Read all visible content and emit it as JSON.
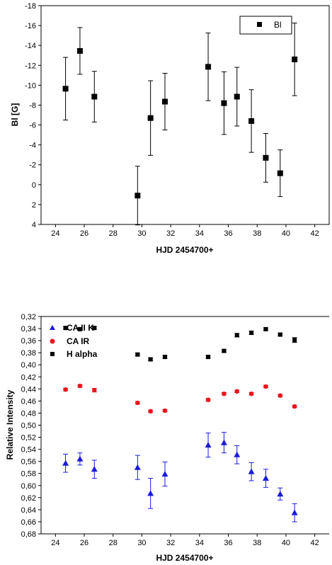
{
  "chart_data": [
    {
      "type": "scatter",
      "title": "",
      "xlabel": "HJD 2454700+",
      "ylabel": "Bl [G]",
      "xlim": [
        23,
        43
      ],
      "ylim": [
        -18,
        4
      ],
      "y_inverted": true,
      "x_ticks": [
        24,
        26,
        28,
        30,
        32,
        34,
        36,
        38,
        40,
        42
      ],
      "y_ticks": [
        -18,
        -16,
        -14,
        -12,
        -10,
        -8,
        -6,
        -4,
        -2,
        0,
        2,
        4
      ],
      "legend_position": "top-right",
      "series": [
        {
          "name": "Bl",
          "color": "#000000",
          "marker": "square",
          "x": [
            24.7,
            25.7,
            26.7,
            29.7,
            30.6,
            31.6,
            34.6,
            35.7,
            36.6,
            37.6,
            38.6,
            39.6,
            40.6
          ],
          "y": [
            -9.65,
            -13.45,
            -8.85,
            1.1,
            -6.7,
            -8.35,
            -11.85,
            -8.2,
            -8.85,
            -6.4,
            -2.7,
            -1.15,
            -12.6
          ],
          "err": [
            3.15,
            2.35,
            2.55,
            2.95,
            3.75,
            2.85,
            3.4,
            3.15,
            2.95,
            3.15,
            2.45,
            2.35,
            3.65
          ]
        }
      ]
    },
    {
      "type": "scatter",
      "title": "",
      "xlabel": "HJD 2454700+",
      "ylabel": "Relative Intensity",
      "xlim": [
        23,
        43
      ],
      "ylim": [
        0.32,
        0.68
      ],
      "x_ticks": [
        24,
        26,
        28,
        30,
        32,
        34,
        36,
        38,
        40,
        42
      ],
      "y_ticks": [
        0.32,
        0.34,
        0.36,
        0.38,
        0.4,
        0.42,
        0.44,
        0.46,
        0.48,
        0.5,
        0.52,
        0.54,
        0.56,
        0.58,
        0.6,
        0.62,
        0.64,
        0.66,
        0.68
      ],
      "y_tick_labels": [
        "0,32",
        "0,34",
        "0,36",
        "0,38",
        "0,40",
        "0,42",
        "0,44",
        "0,46",
        "0,48",
        "0,50",
        "0,52",
        "0,54",
        "0,56",
        "0,58",
        "0,60",
        "0,62",
        "0,64",
        "0,66",
        "0,68"
      ],
      "legend_position": "top-left",
      "series": [
        {
          "name": "CA II K",
          "color": "#1a1adb",
          "marker": "triangle",
          "x": [
            24.7,
            25.7,
            26.7,
            29.7,
            30.6,
            31.6,
            34.6,
            35.7,
            36.6,
            37.6,
            38.6,
            39.6,
            40.6
          ],
          "y": [
            0.563,
            0.556,
            0.573,
            0.57,
            0.613,
            0.581,
            0.533,
            0.529,
            0.549,
            0.577,
            0.588,
            0.614,
            0.645
          ],
          "err": [
            0.015,
            0.01,
            0.015,
            0.02,
            0.025,
            0.02,
            0.02,
            0.017,
            0.015,
            0.015,
            0.015,
            0.01,
            0.015
          ]
        },
        {
          "name": "CA IR",
          "color": "#e8141d",
          "marker": "circle",
          "x": [
            24.7,
            25.7,
            26.7,
            29.7,
            30.6,
            31.6,
            34.6,
            35.7,
            36.6,
            37.6,
            38.6,
            39.6,
            40.6
          ],
          "y": [
            0.441,
            0.435,
            0.442,
            0.463,
            0.477,
            0.476,
            0.458,
            0.448,
            0.444,
            0.448,
            0.436,
            0.451,
            0.469
          ],
          "err": [
            0.002,
            0.002,
            0.003,
            0.002,
            0.002,
            0.002,
            0.002,
            0.002,
            0.002,
            0.002,
            0.002,
            0.002,
            0.002
          ]
        },
        {
          "name": "H alpha",
          "color": "#000000",
          "marker": "square",
          "x": [
            24.7,
            25.7,
            26.7,
            29.7,
            30.6,
            31.6,
            34.6,
            35.7,
            36.6,
            37.6,
            38.6,
            39.6,
            40.6
          ],
          "y": [
            0.339,
            0.341,
            0.339,
            0.383,
            0.391,
            0.387,
            0.387,
            0.377,
            0.351,
            0.347,
            0.341,
            0.35,
            0.359
          ],
          "err": [
            0.002,
            0.002,
            0.002,
            0.002,
            0.002,
            0.002,
            0.002,
            0.002,
            0.003,
            0.003,
            0.002,
            0.002,
            0.004
          ]
        }
      ]
    }
  ]
}
